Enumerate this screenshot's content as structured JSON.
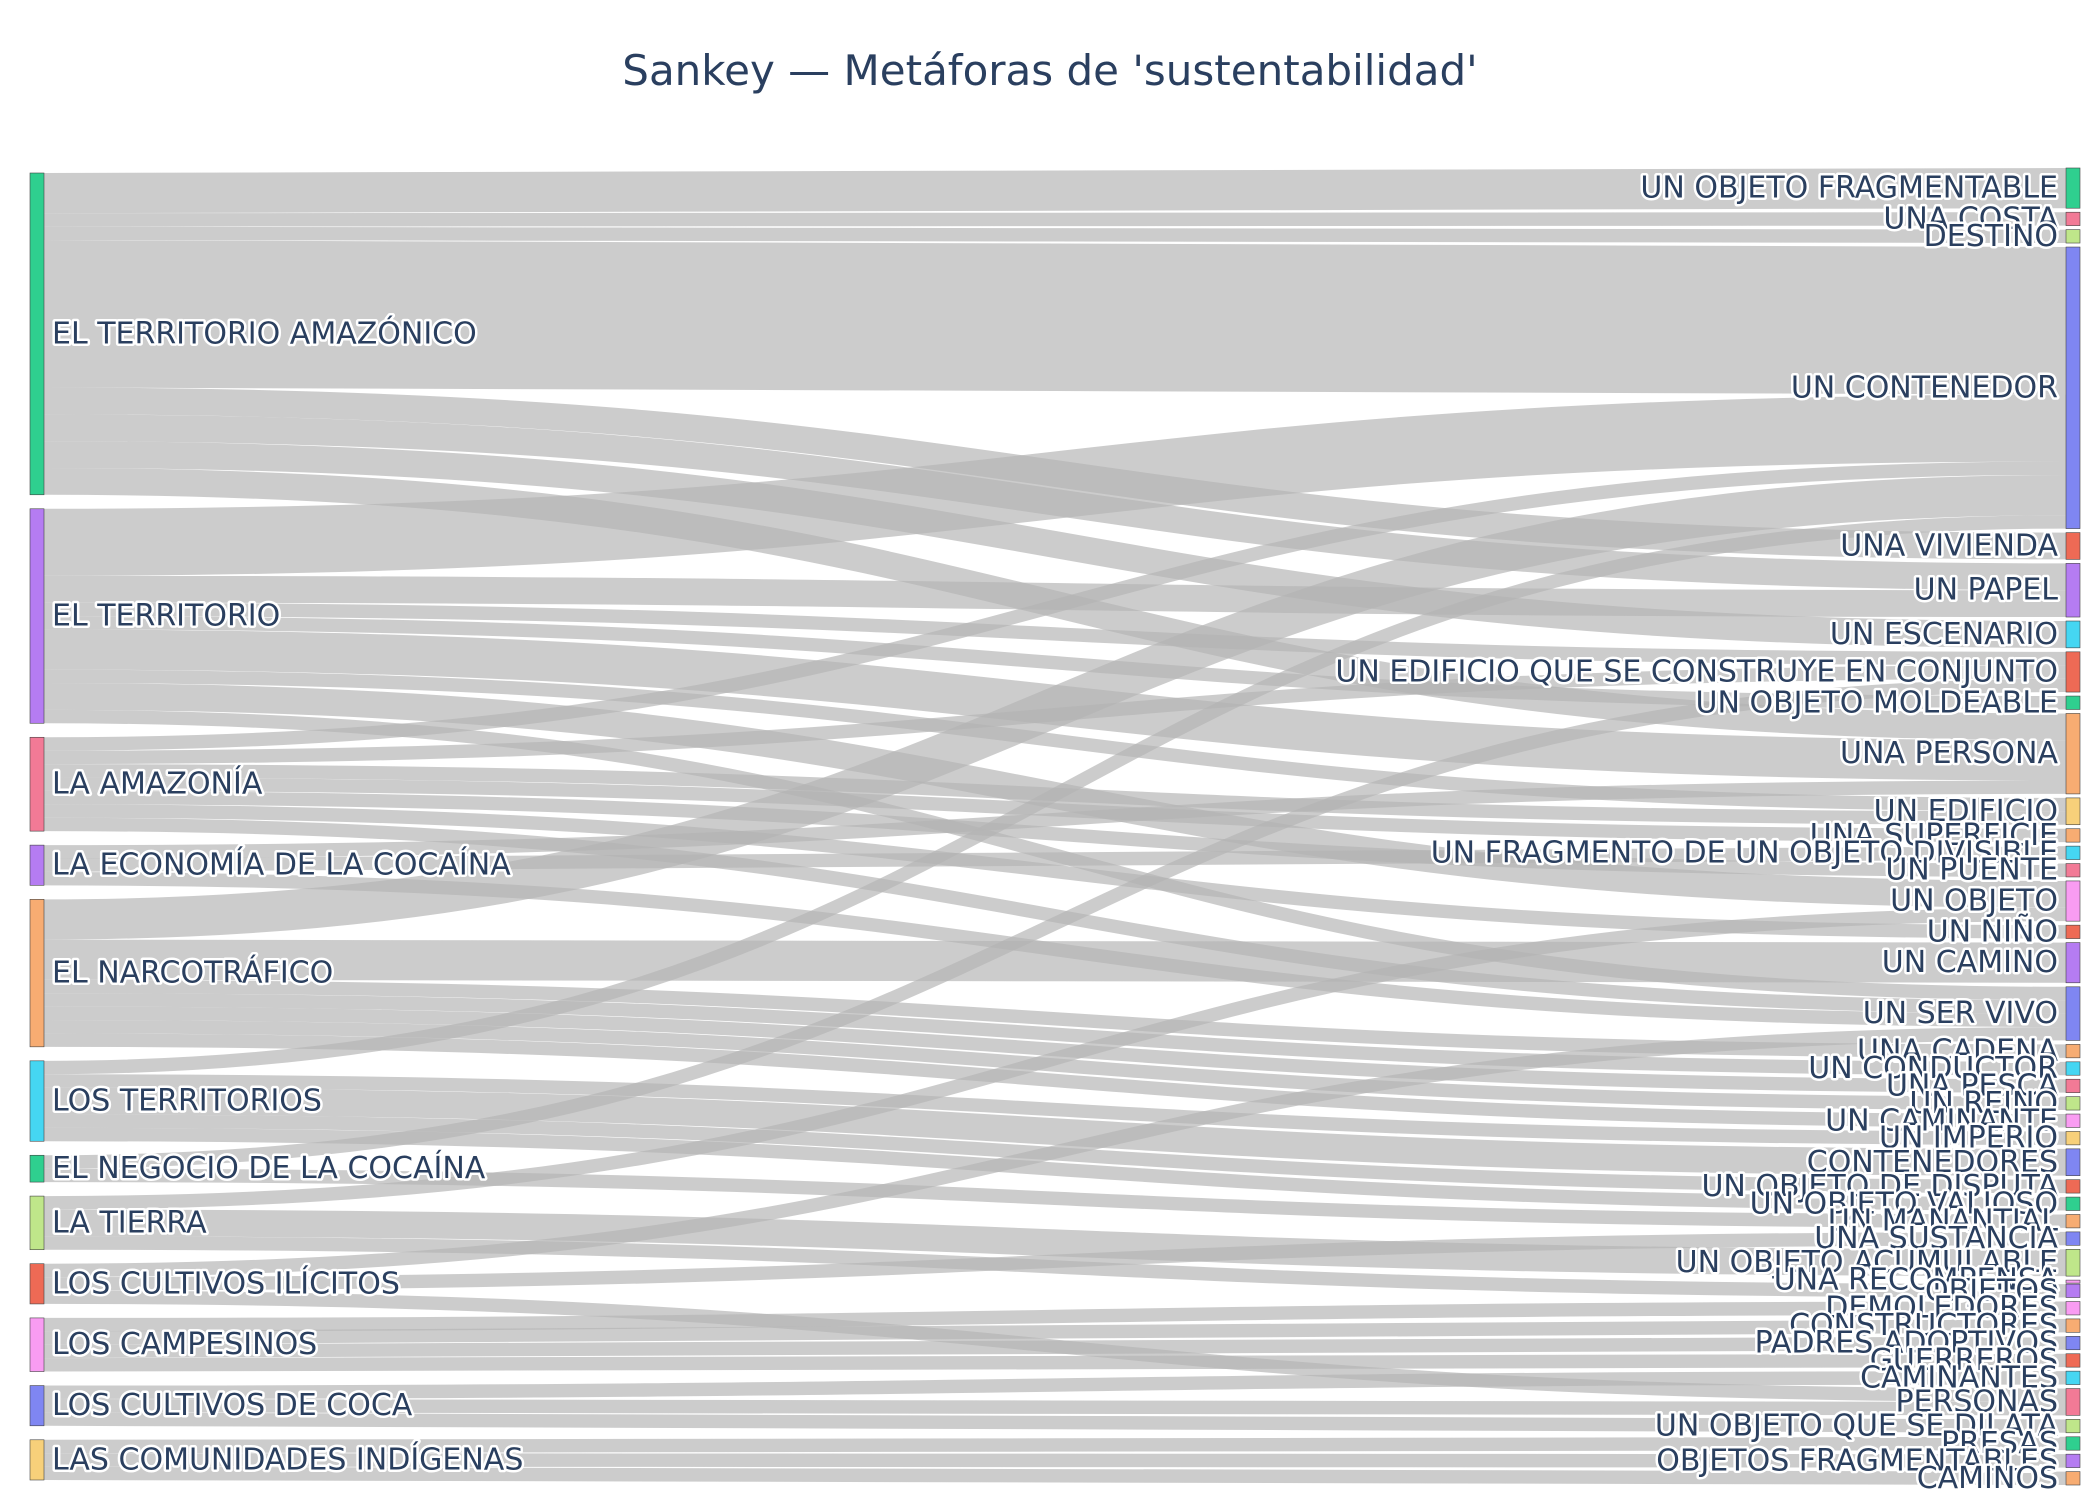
{
  "title": "Sankey — Metáforas de 'sustentabilidad'",
  "link_color": "#b4b4b4",
  "sources": [
    {
      "label": "EL TERRITORIO AMAZÓNICO",
      "color": "#2fcf8f"
    },
    {
      "label": "EL TERRITORIO",
      "color": "#b57cf2"
    },
    {
      "label": "LA AMAZONÍA",
      "color": "#f27a96"
    },
    {
      "label": "LA ECONOMÍA DE LA COCAÍNA",
      "color": "#b57cf2"
    },
    {
      "label": "EL NARCOTRÁFICO",
      "color": "#f7ac72"
    },
    {
      "label": "LOS TERRITORIOS",
      "color": "#45d6f2"
    },
    {
      "label": "EL NEGOCIO DE LA COCAÍNA",
      "color": "#2fcf8f"
    },
    {
      "label": "LA TIERRA",
      "color": "#bfe68a"
    },
    {
      "label": "LOS CULTIVOS ILÍCITOS",
      "color": "#ee6a55"
    },
    {
      "label": "LOS CAMPESINOS",
      "color": "#f99cf2"
    },
    {
      "label": "LOS CULTIVOS DE COCA",
      "color": "#7f86f2"
    },
    {
      "label": "LAS COMUNIDADES INDÍGENAS",
      "color": "#f7d07a"
    }
  ],
  "targets": [
    {
      "label": "UN OBJETO FRAGMENTABLE",
      "color": "#2fcf8f"
    },
    {
      "label": "UNA COSTA",
      "color": "#f27a96"
    },
    {
      "label": "DESTINO",
      "color": "#bfe68a"
    },
    {
      "label": "UN CONTENEDOR",
      "color": "#7f86f2"
    },
    {
      "label": "UNA VIVIENDA",
      "color": "#ee6a55"
    },
    {
      "label": "UN PAPEL",
      "color": "#b57cf2"
    },
    {
      "label": "UN ESCENARIO",
      "color": "#45d6f2"
    },
    {
      "label": "UN EDIFICIO QUE SE CONSTRUYE EN CONJUNTO",
      "color": "#ee6a55"
    },
    {
      "label": "UN OBJETO MOLDEABLE",
      "color": "#2fcf8f"
    },
    {
      "label": "UNA PERSONA",
      "color": "#f7ac72"
    },
    {
      "label": "UN EDIFICIO",
      "color": "#f7d07a"
    },
    {
      "label": "UNA SUPERFICIE",
      "color": "#f7ac72"
    },
    {
      "label": "UN FRAGMENTO DE UN OBJETO DIVISIBLE",
      "color": "#45d6f2"
    },
    {
      "label": "UN PUENTE",
      "color": "#f27a96"
    },
    {
      "label": "UN OBJETO",
      "color": "#f99cf2"
    },
    {
      "label": "UN NIÑO",
      "color": "#ee6a55"
    },
    {
      "label": "UN CAMINO",
      "color": "#b57cf2"
    },
    {
      "label": "UN SER VIVO",
      "color": "#7f86f2"
    },
    {
      "label": "UNA CADENA",
      "color": "#f7ac72"
    },
    {
      "label": "UN CONDUCTOR",
      "color": "#45d6f2"
    },
    {
      "label": "UNA PESCA",
      "color": "#f27a96"
    },
    {
      "label": "UN REINO",
      "color": "#bfe68a"
    },
    {
      "label": "UN CAMINANTE",
      "color": "#f99cf2"
    },
    {
      "label": "UN IMPERIO",
      "color": "#f7d07a"
    },
    {
      "label": "CONTENEDORES",
      "color": "#7f86f2"
    },
    {
      "label": "UN OBJETO DE DISPUTA",
      "color": "#ee6a55"
    },
    {
      "label": "UN OBJETO VALIOSO",
      "color": "#2fcf8f"
    },
    {
      "label": "UN MANANTIAL",
      "color": "#f7ac72"
    },
    {
      "label": "UNA SUSTANCIA",
      "color": "#7f86f2"
    },
    {
      "label": "UN OBJETO ACUMULABLE",
      "color": "#bfe68a"
    },
    {
      "label": "UNA RECOMPENSA",
      "color": "#f99cf2"
    },
    {
      "label": "OBJETOS",
      "color": "#b57cf2"
    },
    {
      "label": "DEMOLEDORES",
      "color": "#f99cf2"
    },
    {
      "label": "CONSTRUCTORES",
      "color": "#f7ac72"
    },
    {
      "label": "PADRES ADOPTIVOS",
      "color": "#7f86f2"
    },
    {
      "label": "GUERREROS",
      "color": "#ee6a55"
    },
    {
      "label": "CAMINANTES",
      "color": "#45d6f2"
    },
    {
      "label": "PERSONAS",
      "color": "#f27a96"
    },
    {
      "label": "UN OBJETO QUE SE DILATA",
      "color": "#bfe68a"
    },
    {
      "label": "PRESAS",
      "color": "#2fcf8f"
    },
    {
      "label": "OBJETOS FRAGMENTABLES",
      "color": "#b57cf2"
    },
    {
      "label": "CAMINOS",
      "color": "#f7ac72"
    }
  ],
  "links": [
    {
      "source": 0,
      "target": 0,
      "value": 3
    },
    {
      "source": 0,
      "target": 1,
      "value": 1
    },
    {
      "source": 0,
      "target": 2,
      "value": 1
    },
    {
      "source": 0,
      "target": 3,
      "value": 11
    },
    {
      "source": 0,
      "target": 4,
      "value": 2
    },
    {
      "source": 0,
      "target": 5,
      "value": 2
    },
    {
      "source": 0,
      "target": 6,
      "value": 2
    },
    {
      "source": 0,
      "target": 9,
      "value": 2
    },
    {
      "source": 1,
      "target": 3,
      "value": 5
    },
    {
      "source": 1,
      "target": 5,
      "value": 2
    },
    {
      "source": 1,
      "target": 7,
      "value": 1
    },
    {
      "source": 1,
      "target": 8,
      "value": 1
    },
    {
      "source": 1,
      "target": 9,
      "value": 3
    },
    {
      "source": 1,
      "target": 10,
      "value": 1
    },
    {
      "source": 1,
      "target": 14,
      "value": 2
    },
    {
      "source": 1,
      "target": 17,
      "value": 1
    },
    {
      "source": 2,
      "target": 3,
      "value": 1
    },
    {
      "source": 2,
      "target": 7,
      "value": 1
    },
    {
      "source": 2,
      "target": 10,
      "value": 1
    },
    {
      "source": 2,
      "target": 11,
      "value": 1
    },
    {
      "source": 2,
      "target": 13,
      "value": 1
    },
    {
      "source": 2,
      "target": 15,
      "value": 1
    },
    {
      "source": 2,
      "target": 17,
      "value": 1
    },
    {
      "source": 3,
      "target": 9,
      "value": 1
    },
    {
      "source": 3,
      "target": 12,
      "value": 1
    },
    {
      "source": 3,
      "target": 17,
      "value": 1
    },
    {
      "source": 4,
      "target": 3,
      "value": 3
    },
    {
      "source": 4,
      "target": 16,
      "value": 3
    },
    {
      "source": 4,
      "target": 18,
      "value": 1
    },
    {
      "source": 4,
      "target": 19,
      "value": 1
    },
    {
      "source": 4,
      "target": 20,
      "value": 1
    },
    {
      "source": 4,
      "target": 21,
      "value": 1
    },
    {
      "source": 4,
      "target": 22,
      "value": 1
    },
    {
      "source": 5,
      "target": 3,
      "value": 1
    },
    {
      "source": 5,
      "target": 23,
      "value": 1
    },
    {
      "source": 5,
      "target": 24,
      "value": 2
    },
    {
      "source": 5,
      "target": 25,
      "value": 1
    },
    {
      "source": 5,
      "target": 26,
      "value": 1
    },
    {
      "source": 6,
      "target": 7,
      "value": 1
    },
    {
      "source": 6,
      "target": 27,
      "value": 1
    },
    {
      "source": 7,
      "target": 14,
      "value": 1
    },
    {
      "source": 7,
      "target": 29,
      "value": 2
    },
    {
      "source": 7,
      "target": 31,
      "value": 1
    },
    {
      "source": 8,
      "target": 17,
      "value": 1
    },
    {
      "source": 8,
      "target": 28,
      "value": 1
    },
    {
      "source": 8,
      "target": 37,
      "value": 1
    },
    {
      "source": 9,
      "target": 32,
      "value": 1
    },
    {
      "source": 9,
      "target": 33,
      "value": 1
    },
    {
      "source": 9,
      "target": 34,
      "value": 1
    },
    {
      "source": 9,
      "target": 35,
      "value": 1
    },
    {
      "source": 10,
      "target": 36,
      "value": 1
    },
    {
      "source": 10,
      "target": 37,
      "value": 1
    },
    {
      "source": 10,
      "target": 38,
      "value": 1
    },
    {
      "source": 11,
      "target": 39,
      "value": 1
    },
    {
      "source": 11,
      "target": 40,
      "value": 1
    },
    {
      "source": 11,
      "target": 41,
      "value": 1
    }
  ]
}
